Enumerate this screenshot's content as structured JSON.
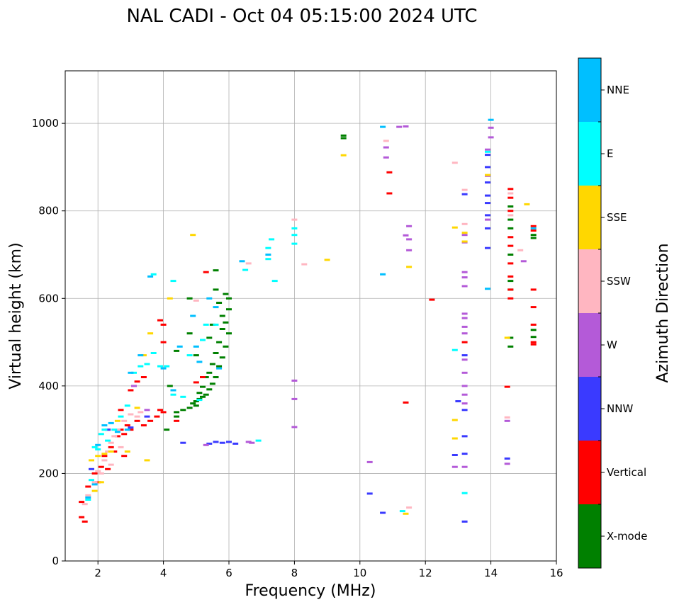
{
  "chart_data": {
    "type": "scatter",
    "title": "NAL CADI - Oct 04 05:15:00 2024 UTC",
    "xlabel": "Frequency (MHz)",
    "ylabel": "Virtual height (km)",
    "xlim": [
      1,
      16
    ],
    "ylim": [
      0,
      1120
    ],
    "xticks": [
      2,
      4,
      6,
      8,
      10,
      12,
      14,
      16
    ],
    "yticks": [
      0,
      200,
      400,
      600,
      800,
      1000
    ],
    "grid": true,
    "colorbar": {
      "label": "Azimuth Direction",
      "categories": [
        {
          "name": "X-mode",
          "color": "#008000"
        },
        {
          "name": "Vertical",
          "color": "#ff0000"
        },
        {
          "name": "NNW",
          "color": "#3a3aff"
        },
        {
          "name": "W",
          "color": "#b45ad8"
        },
        {
          "name": "SSW",
          "color": "#ffb6c1"
        },
        {
          "name": "SSE",
          "color": "#ffd700"
        },
        {
          "name": "E",
          "color": "#00ffff"
        },
        {
          "name": "NNE",
          "color": "#00bfff"
        }
      ]
    },
    "series": [
      {
        "name": "X-mode",
        "points": [
          [
            4.9,
            360
          ],
          [
            5.0,
            365
          ],
          [
            5.1,
            370
          ],
          [
            5.2,
            375
          ],
          [
            5.0,
            355
          ],
          [
            5.3,
            380
          ],
          [
            5.4,
            392
          ],
          [
            5.1,
            384
          ],
          [
            5.5,
            405
          ],
          [
            5.6,
            420
          ],
          [
            5.2,
            398
          ],
          [
            5.7,
            445
          ],
          [
            5.4,
            430
          ],
          [
            5.8,
            465
          ],
          [
            5.5,
            450
          ],
          [
            5.9,
            490
          ],
          [
            5.6,
            475
          ],
          [
            6.0,
            520
          ],
          [
            5.7,
            500
          ],
          [
            5.9,
            545
          ],
          [
            6.0,
            575
          ],
          [
            5.8,
            560
          ],
          [
            6.0,
            600
          ],
          [
            5.9,
            610
          ],
          [
            5.7,
            590
          ],
          [
            5.8,
            530
          ],
          [
            5.3,
            420
          ],
          [
            5.0,
            470
          ],
          [
            4.8,
            520
          ],
          [
            5.4,
            510
          ],
          [
            5.6,
            620
          ],
          [
            5.5,
            540
          ],
          [
            4.8,
            350
          ],
          [
            4.6,
            345
          ],
          [
            4.4,
            340
          ],
          [
            4.1,
            300
          ],
          [
            4.4,
            330
          ],
          [
            4.2,
            400
          ],
          [
            4.4,
            480
          ],
          [
            4.8,
            600
          ],
          [
            5.6,
            664
          ],
          [
            9.5,
            966
          ],
          [
            9.5,
            972
          ],
          [
            14.6,
            620
          ],
          [
            14.6,
            640
          ],
          [
            14.6,
            700
          ],
          [
            14.6,
            760
          ],
          [
            14.6,
            780
          ],
          [
            14.6,
            810
          ],
          [
            14.6,
            490
          ],
          [
            14.6,
            510
          ],
          [
            15.3,
            512
          ],
          [
            15.3,
            528
          ],
          [
            15.3,
            745
          ],
          [
            15.3,
            738
          ]
        ]
      },
      {
        "name": "Vertical",
        "points": [
          [
            1.6,
            90
          ],
          [
            1.5,
            100
          ],
          [
            1.5,
            135
          ],
          [
            1.7,
            170
          ],
          [
            1.9,
            200
          ],
          [
            2.0,
            180
          ],
          [
            2.1,
            215
          ],
          [
            2.2,
            240
          ],
          [
            2.3,
            210
          ],
          [
            2.4,
            260
          ],
          [
            2.5,
            250
          ],
          [
            2.6,
            285
          ],
          [
            2.7,
            300
          ],
          [
            2.8,
            290
          ],
          [
            2.9,
            310
          ],
          [
            3.0,
            300
          ],
          [
            3.2,
            320
          ],
          [
            3.4,
            310
          ],
          [
            3.6,
            320
          ],
          [
            3.8,
            330
          ],
          [
            3.9,
            345
          ],
          [
            4.0,
            340
          ],
          [
            2.8,
            240
          ],
          [
            2.3,
            300
          ],
          [
            3.2,
            410
          ],
          [
            3.4,
            420
          ],
          [
            3.0,
            390
          ],
          [
            2.7,
            345
          ],
          [
            3.9,
            550
          ],
          [
            4.0,
            540
          ],
          [
            4.0,
            500
          ],
          [
            4.4,
            320
          ],
          [
            5.0,
            408
          ],
          [
            5.2,
            420
          ],
          [
            5.3,
            660
          ],
          [
            10.9,
            840
          ],
          [
            10.9,
            888
          ],
          [
            11.4,
            362
          ],
          [
            12.2,
            597
          ],
          [
            13.2,
            500
          ],
          [
            14.5,
            398
          ],
          [
            14.6,
            600
          ],
          [
            14.6,
            620
          ],
          [
            14.6,
            650
          ],
          [
            14.6,
            680
          ],
          [
            14.6,
            720
          ],
          [
            14.6,
            740
          ],
          [
            14.6,
            800
          ],
          [
            14.6,
            830
          ],
          [
            14.6,
            850
          ],
          [
            15.3,
            495
          ],
          [
            15.3,
            540
          ],
          [
            15.3,
            580
          ],
          [
            15.3,
            620
          ],
          [
            15.3,
            500
          ],
          [
            15.3,
            755
          ],
          [
            15.3,
            765
          ]
        ]
      },
      {
        "name": "NNW",
        "points": [
          [
            1.8,
            210
          ],
          [
            2.3,
            300
          ],
          [
            3.0,
            305
          ],
          [
            3.5,
            330
          ],
          [
            4.6,
            270
          ],
          [
            5.4,
            268
          ],
          [
            5.6,
            272
          ],
          [
            5.8,
            270
          ],
          [
            6.0,
            272
          ],
          [
            6.2,
            268
          ],
          [
            10.3,
            154
          ],
          [
            10.7,
            110
          ],
          [
            12.9,
            242
          ],
          [
            13.2,
            90
          ],
          [
            13.2,
            245
          ],
          [
            13.2,
            285
          ],
          [
            13.2,
            345
          ],
          [
            13.2,
            470
          ],
          [
            13.2,
            838
          ],
          [
            13.0,
            365
          ],
          [
            13.9,
            715
          ],
          [
            13.9,
            760
          ],
          [
            13.9,
            790
          ],
          [
            13.9,
            818
          ],
          [
            13.9,
            835
          ],
          [
            13.9,
            865
          ],
          [
            13.9,
            900
          ],
          [
            13.9,
            928
          ],
          [
            14.5,
            234
          ]
        ]
      },
      {
        "name": "W",
        "points": [
          [
            3.1,
            400
          ],
          [
            3.5,
            345
          ],
          [
            5.3,
            265
          ],
          [
            6.6,
            272
          ],
          [
            6.7,
            270
          ],
          [
            8.0,
            370
          ],
          [
            8.0,
            412
          ],
          [
            8.0,
            306
          ],
          [
            10.3,
            226
          ],
          [
            10.8,
            922
          ],
          [
            10.8,
            945
          ],
          [
            11.2,
            992
          ],
          [
            11.4,
            993
          ],
          [
            11.4,
            744
          ],
          [
            11.5,
            735
          ],
          [
            11.5,
            710
          ],
          [
            11.5,
            765
          ],
          [
            12.9,
            215
          ],
          [
            13.2,
            215
          ],
          [
            13.2,
            360
          ],
          [
            13.2,
            380
          ],
          [
            13.2,
            400
          ],
          [
            13.2,
            430
          ],
          [
            13.2,
            460
          ],
          [
            13.2,
            520
          ],
          [
            13.2,
            535
          ],
          [
            13.2,
            555
          ],
          [
            13.2,
            565
          ],
          [
            13.2,
            628
          ],
          [
            13.2,
            648
          ],
          [
            13.2,
            660
          ],
          [
            13.2,
            728
          ],
          [
            13.2,
            745
          ],
          [
            14.0,
            990
          ],
          [
            14.0,
            968
          ],
          [
            13.9,
            940
          ],
          [
            13.9,
            880
          ],
          [
            13.9,
            780
          ],
          [
            14.5,
            222
          ],
          [
            14.5,
            320
          ],
          [
            15.0,
            685
          ]
        ]
      },
      {
        "name": "SSW",
        "points": [
          [
            1.6,
            130
          ],
          [
            1.7,
            150
          ],
          [
            1.9,
            180
          ],
          [
            2.0,
            205
          ],
          [
            2.1,
            200
          ],
          [
            2.2,
            230
          ],
          [
            2.3,
            250
          ],
          [
            2.4,
            270
          ],
          [
            2.5,
            285
          ],
          [
            2.6,
            300
          ],
          [
            2.8,
            320
          ],
          [
            3.0,
            335
          ],
          [
            3.2,
            330
          ],
          [
            2.7,
            260
          ],
          [
            2.4,
            220
          ],
          [
            3.3,
            340
          ],
          [
            5.0,
            595
          ],
          [
            6.6,
            680
          ],
          [
            8.0,
            780
          ],
          [
            8.3,
            678
          ],
          [
            10.8,
            960
          ],
          [
            11.5,
            122
          ],
          [
            12.9,
            910
          ],
          [
            13.2,
            770
          ],
          [
            13.2,
            848
          ],
          [
            14.5,
            328
          ],
          [
            14.9,
            710
          ],
          [
            14.6,
            790
          ],
          [
            14.6,
            840
          ]
        ]
      },
      {
        "name": "SSE",
        "points": [
          [
            1.8,
            230
          ],
          [
            2.0,
            240
          ],
          [
            1.9,
            160
          ],
          [
            2.1,
            180
          ],
          [
            2.2,
            245
          ],
          [
            2.4,
            250
          ],
          [
            2.6,
            320
          ],
          [
            2.9,
            250
          ],
          [
            3.2,
            350
          ],
          [
            3.4,
            470
          ],
          [
            3.6,
            520
          ],
          [
            3.5,
            230
          ],
          [
            4.2,
            600
          ],
          [
            4.9,
            745
          ],
          [
            9.0,
            688
          ],
          [
            9.5,
            927
          ],
          [
            11.4,
            108
          ],
          [
            11.5,
            672
          ],
          [
            12.9,
            322
          ],
          [
            12.9,
            280
          ],
          [
            12.9,
            762
          ],
          [
            13.2,
            730
          ],
          [
            13.2,
            750
          ],
          [
            13.9,
            882
          ],
          [
            14.5,
            510
          ],
          [
            15.1,
            815
          ]
        ]
      },
      {
        "name": "E",
        "points": [
          [
            1.7,
            140
          ],
          [
            1.8,
            185
          ],
          [
            1.9,
            260
          ],
          [
            2.0,
            255
          ],
          [
            2.1,
            290
          ],
          [
            2.2,
            300
          ],
          [
            2.3,
            275
          ],
          [
            2.5,
            300
          ],
          [
            2.7,
            330
          ],
          [
            2.9,
            355
          ],
          [
            3.1,
            430
          ],
          [
            3.3,
            445
          ],
          [
            3.5,
            450
          ],
          [
            3.7,
            475
          ],
          [
            3.9,
            445
          ],
          [
            4.1,
            445
          ],
          [
            4.3,
            380
          ],
          [
            4.6,
            375
          ],
          [
            4.8,
            470
          ],
          [
            5.1,
            368
          ],
          [
            5.2,
            505
          ],
          [
            5.6,
            540
          ],
          [
            5.3,
            540
          ],
          [
            3.7,
            655
          ],
          [
            4.3,
            640
          ],
          [
            6.5,
            665
          ],
          [
            6.9,
            275
          ],
          [
            7.2,
            690
          ],
          [
            7.2,
            715
          ],
          [
            7.3,
            735
          ],
          [
            7.4,
            640
          ],
          [
            8.0,
            725
          ],
          [
            8.0,
            745
          ],
          [
            8.0,
            760
          ],
          [
            11.3,
            114
          ],
          [
            12.9,
            482
          ],
          [
            13.2,
            155
          ],
          [
            13.9,
            935
          ]
        ]
      },
      {
        "name": "NNE",
        "points": [
          [
            1.7,
            145
          ],
          [
            1.9,
            175
          ],
          [
            2.0,
            265
          ],
          [
            2.2,
            310
          ],
          [
            2.4,
            315
          ],
          [
            2.6,
            295
          ],
          [
            2.9,
            300
          ],
          [
            3.0,
            430
          ],
          [
            3.3,
            470
          ],
          [
            3.6,
            650
          ],
          [
            4.0,
            440
          ],
          [
            4.3,
            390
          ],
          [
            4.5,
            490
          ],
          [
            4.9,
            560
          ],
          [
            5.0,
            490
          ],
          [
            5.1,
            455
          ],
          [
            5.4,
            600
          ],
          [
            5.6,
            580
          ],
          [
            5.7,
            440
          ],
          [
            6.4,
            685
          ],
          [
            7.2,
            700
          ],
          [
            10.7,
            655
          ],
          [
            10.7,
            992
          ],
          [
            13.9,
            622
          ],
          [
            14.0,
            1008
          ],
          [
            15.3,
            760
          ]
        ]
      }
    ]
  }
}
